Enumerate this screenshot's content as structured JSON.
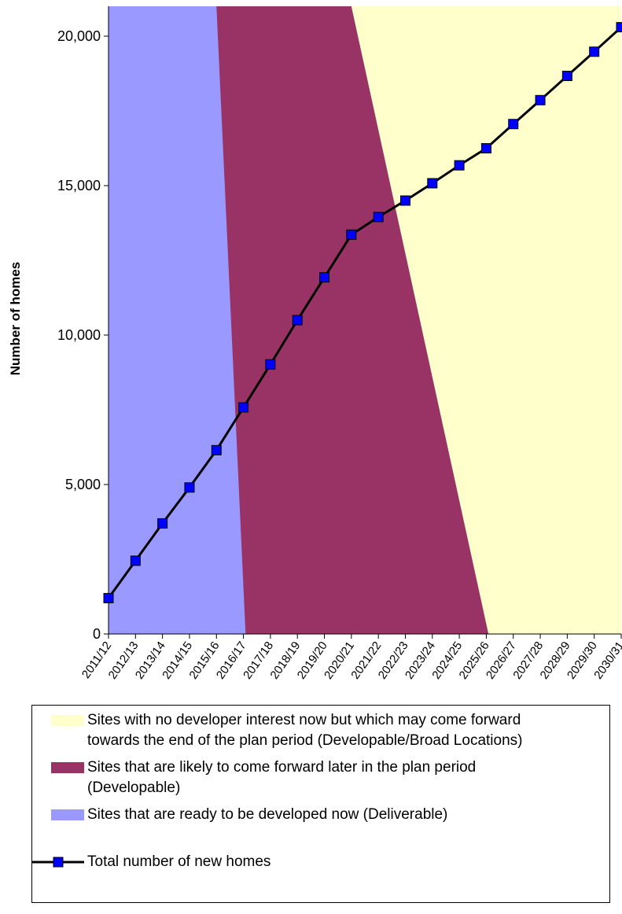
{
  "chart_data": {
    "type": "area",
    "ylabel": "Number of homes",
    "xlabel": "",
    "title": "",
    "ylim": [
      0,
      21000
    ],
    "yticks": [
      0,
      5000,
      10000,
      15000,
      20000
    ],
    "ytick_labels": [
      "0",
      "5,000",
      "10,000",
      "15,000",
      "20,000"
    ],
    "categories": [
      "2011/12",
      "2012/13",
      "2013/14",
      "2014/15",
      "2015/16",
      "2016/17",
      "2017/18",
      "2018/19",
      "2019/20",
      "2020/21",
      "2021/22",
      "2022/23",
      "2023/24",
      "2024/25",
      "2025/26",
      "2026/27",
      "2027/28",
      "2028/29",
      "2029/30",
      "2030/31"
    ],
    "regions": [
      {
        "name": "Sites that are ready to be developed now (Deliverable)",
        "color": "#9999ff",
        "top_boundary_category": "2015/16",
        "bottom_boundary_category": "2016/17"
      },
      {
        "name": "Sites that are likely to come forward later in the plan period (Developable)",
        "color": "#993366",
        "top_boundary_category": "2020/21",
        "bottom_boundary_category": "2025/26"
      },
      {
        "name": "Sites with no developer interest now but which may come forward towards the end of the plan period (Developable/Broad Locations)",
        "color": "#ffffcc"
      }
    ],
    "series": [
      {
        "name": "Total number of new homes",
        "color": "#000000",
        "marker_color": "#0000ff",
        "values": [
          1200,
          2450,
          3700,
          4900,
          6150,
          7580,
          9020,
          10500,
          11930,
          13360,
          13950,
          14500,
          15080,
          15680,
          16250,
          17060,
          17860,
          18670,
          19480,
          20300
        ]
      }
    ],
    "legend_position": "bottom",
    "grid": false
  },
  "legend": {
    "items": [
      {
        "label_line1": "Sites with no developer interest now but which may come forward",
        "label_line2": "towards the end of the plan period (Developable/Broad Locations)",
        "color": "#ffffcc"
      },
      {
        "label_line1": "Sites that are likely to come forward later in the plan period",
        "label_line2": "(Developable)",
        "color": "#993366"
      },
      {
        "label_line1": "Sites that are ready to be developed now (Deliverable)",
        "label_line2": "",
        "color": "#9999ff"
      }
    ],
    "line_label": "Total number of new homes"
  }
}
